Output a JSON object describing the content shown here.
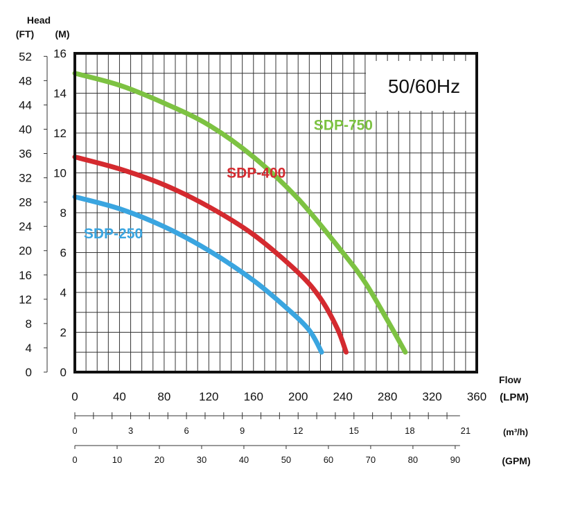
{
  "chart_data": {
    "type": "line",
    "badge": "50/60Hz",
    "y_left_title": "Head",
    "y_ft_unit": "(FT)",
    "y_m_unit": "(M)",
    "x_title": "Flow",
    "x_lpm_unit": "(LPM)",
    "x_m3h_unit": "(m³/h)",
    "x_gpm_unit": "(GPM)",
    "ylim_m": [
      0,
      16
    ],
    "xlim_lpm": [
      0,
      360
    ],
    "grid": true,
    "y_m_ticks": [
      "0",
      "2",
      "4",
      "6",
      "8",
      "10",
      "12",
      "14",
      "16"
    ],
    "y_ft_ticks": [
      "0",
      "4",
      "8",
      "12",
      "16",
      "20",
      "24",
      "28",
      "32",
      "36",
      "40",
      "44",
      "48",
      "52"
    ],
    "x_lpm_ticks": [
      "0",
      "40",
      "80",
      "120",
      "160",
      "200",
      "240",
      "280",
      "320",
      "360"
    ],
    "x_m3h_ticks": [
      "0",
      "3",
      "6",
      "9",
      "12",
      "15",
      "18",
      "21"
    ],
    "x_gpm_ticks": [
      "0",
      "10",
      "20",
      "30",
      "40",
      "50",
      "60",
      "70",
      "80",
      "90"
    ],
    "series": [
      {
        "name": "SDP-750",
        "color": "#7dc242",
        "points": [
          [
            0,
            15.0
          ],
          [
            40,
            14.4
          ],
          [
            80,
            13.5
          ],
          [
            120,
            12.4
          ],
          [
            160,
            10.8
          ],
          [
            200,
            8.7
          ],
          [
            240,
            6.0
          ],
          [
            260,
            4.5
          ],
          [
            280,
            2.6
          ],
          [
            296,
            1.0
          ]
        ]
      },
      {
        "name": "SDP-400",
        "color": "#d42a2f",
        "points": [
          [
            0,
            10.8
          ],
          [
            40,
            10.2
          ],
          [
            80,
            9.4
          ],
          [
            120,
            8.3
          ],
          [
            160,
            6.9
          ],
          [
            200,
            5.0
          ],
          [
            220,
            3.7
          ],
          [
            235,
            2.2
          ],
          [
            243,
            1.0
          ]
        ]
      },
      {
        "name": "SDP-250",
        "color": "#3aa5e0",
        "points": [
          [
            0,
            8.8
          ],
          [
            40,
            8.2
          ],
          [
            80,
            7.3
          ],
          [
            120,
            6.1
          ],
          [
            160,
            4.6
          ],
          [
            190,
            3.2
          ],
          [
            210,
            2.1
          ],
          [
            221,
            1.0
          ]
        ]
      }
    ]
  }
}
